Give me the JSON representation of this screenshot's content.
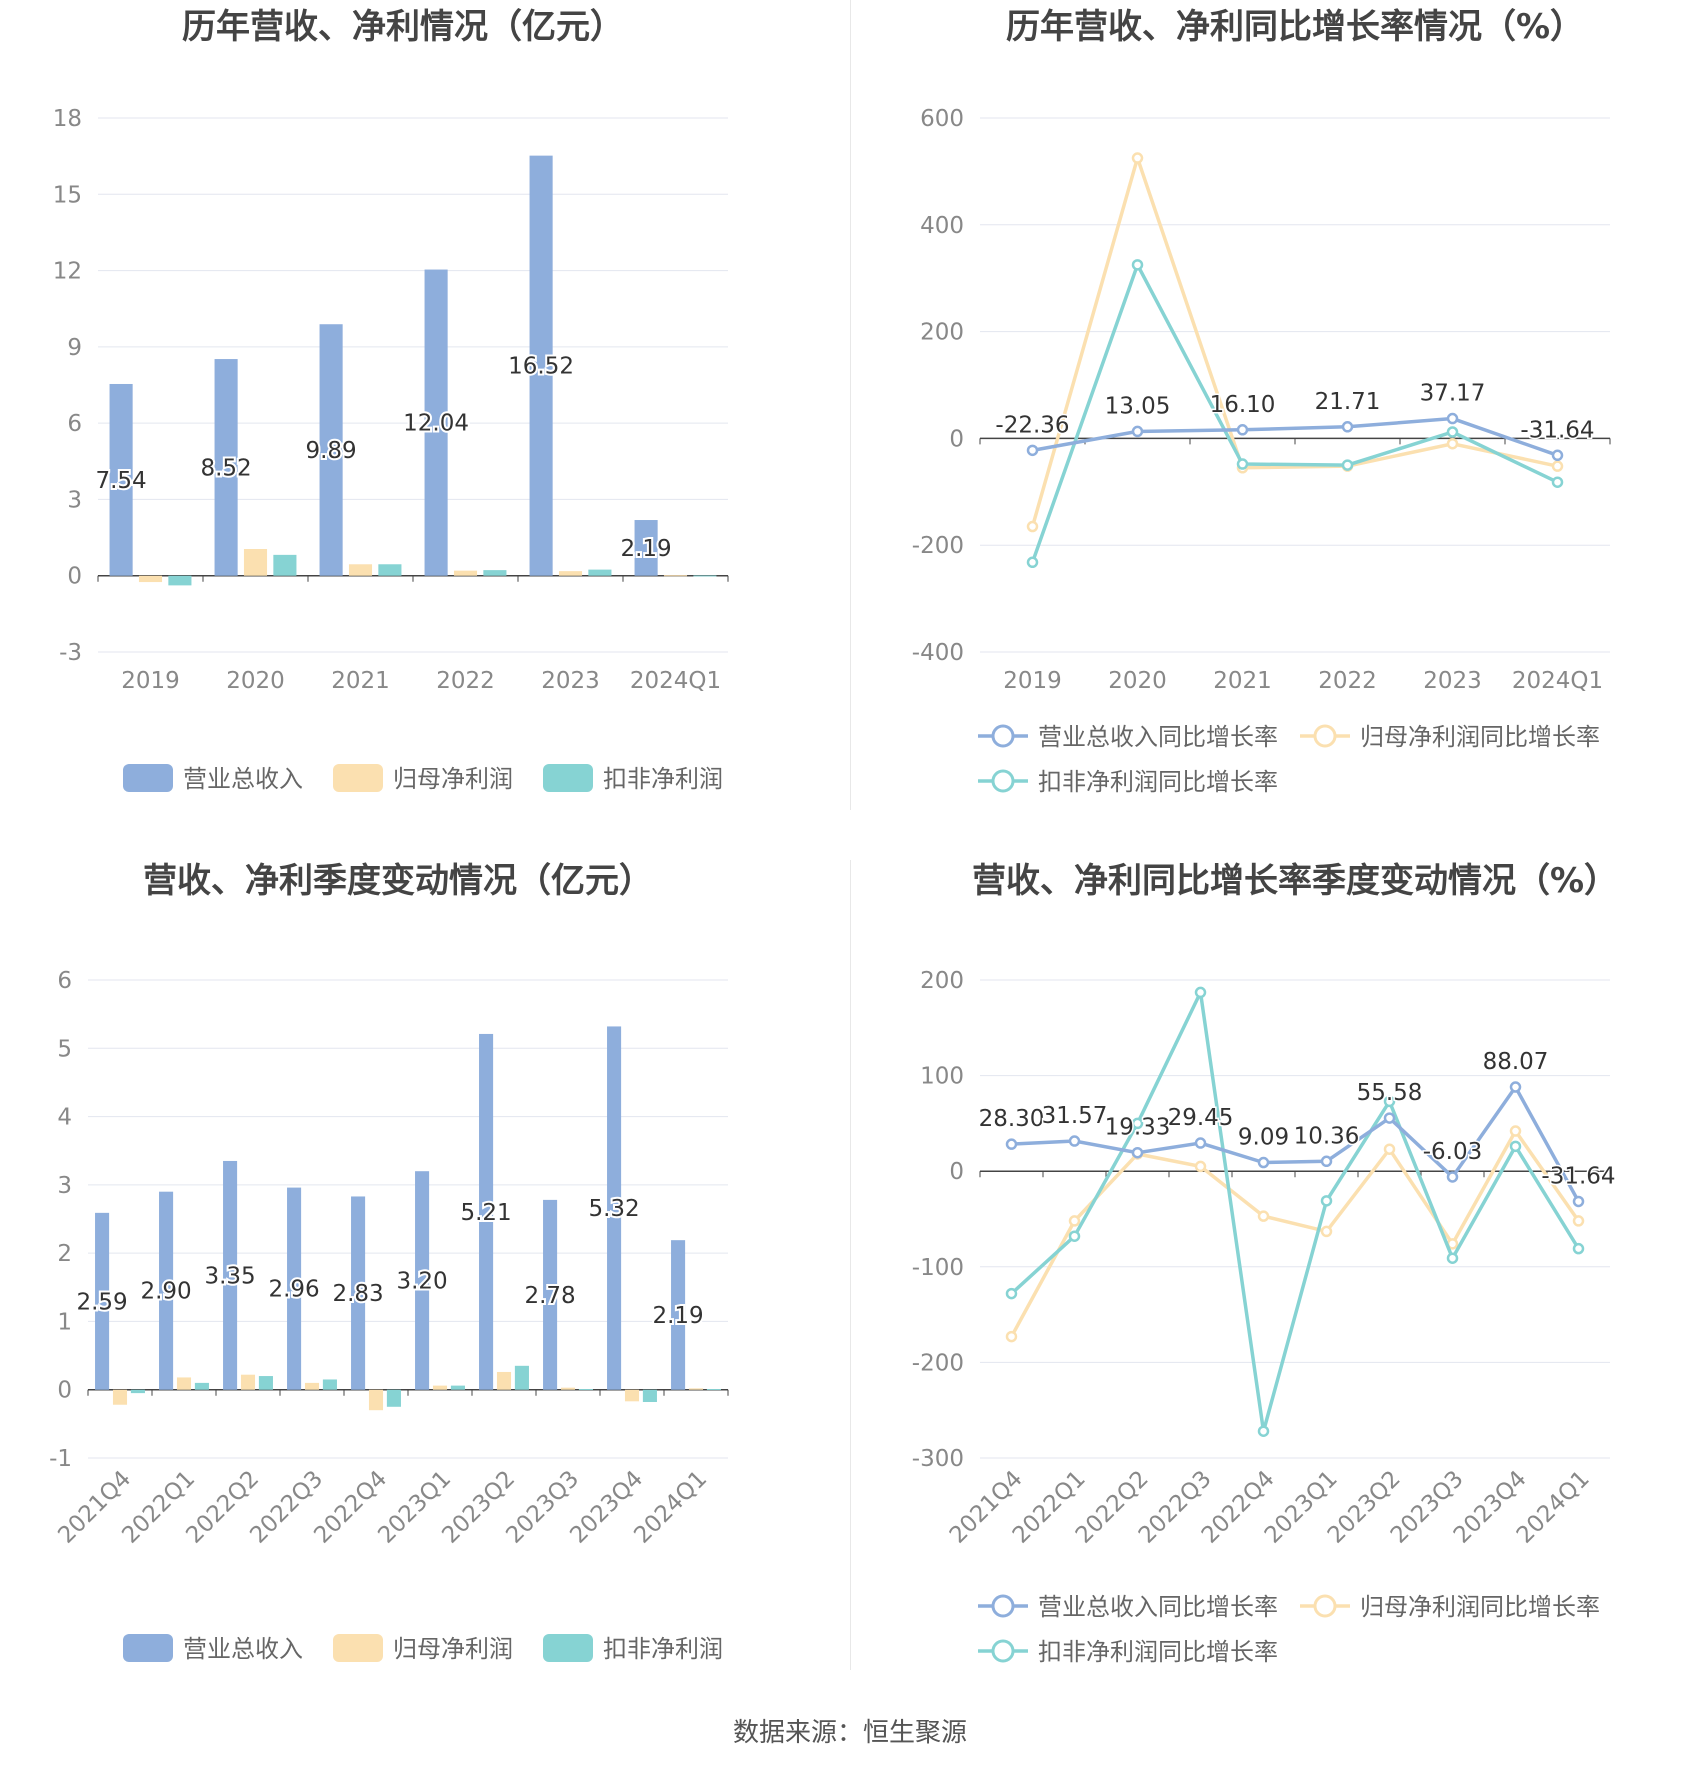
{
  "source_label": "数据来源：恒生聚源",
  "colors": {
    "revenue": "#8eaedc",
    "net_profit": "#fbe0b0",
    "deducted_profit": "#86d3d3",
    "grid": "#e3e6ef",
    "text": "#333333"
  },
  "chart_data": [
    {
      "type": "bar",
      "title": "历年营收、净利情况（亿元）",
      "categories": [
        "2019",
        "2020",
        "2021",
        "2022",
        "2023",
        "2024Q1"
      ],
      "series": [
        {
          "name": "营业总收入",
          "values": [
            7.54,
            8.52,
            9.89,
            12.04,
            16.52,
            2.19
          ]
        },
        {
          "name": "归母净利润",
          "values": [
            -0.25,
            1.05,
            0.45,
            0.2,
            0.18,
            0.02
          ]
        },
        {
          "name": "扣非净利润",
          "values": [
            -0.38,
            0.82,
            0.45,
            0.22,
            0.24,
            0.01
          ]
        }
      ],
      "data_labels": [
        "7.54",
        "8.52",
        "9.89",
        "12.04",
        "16.52",
        "2.19"
      ],
      "ylim": [
        -3,
        18
      ],
      "yticks": [
        "-3",
        "0",
        "3",
        "6",
        "9",
        "12",
        "15",
        "18"
      ],
      "grid": true,
      "legend": "bottom"
    },
    {
      "type": "line",
      "title": "历年营收、净利同比增长率情况（%）",
      "categories": [
        "2019",
        "2020",
        "2021",
        "2022",
        "2023",
        "2024Q1"
      ],
      "series": [
        {
          "name": "营业总收入同比增长率",
          "values": [
            -22.36,
            13.05,
            16.1,
            21.71,
            37.17,
            -31.64
          ]
        },
        {
          "name": "归母净利润同比增长率",
          "values": [
            -165,
            525,
            -55,
            -52,
            -10,
            -52
          ]
        },
        {
          "name": "扣非净利润同比增长率",
          "values": [
            -232,
            325,
            -48,
            -50,
            12,
            -82
          ]
        }
      ],
      "data_labels": [
        "-22.36",
        "13.05",
        "16.10",
        "21.71",
        "37.17",
        "-31.64"
      ],
      "ylim": [
        -400,
        600
      ],
      "yticks": [
        "-400",
        "-200",
        "0",
        "200",
        "400",
        "600"
      ],
      "grid": true,
      "legend": "bottom"
    },
    {
      "type": "bar",
      "title": "营收、净利季度变动情况（亿元）",
      "categories": [
        "2021Q4",
        "2022Q1",
        "2022Q2",
        "2022Q3",
        "2022Q4",
        "2023Q1",
        "2023Q2",
        "2023Q3",
        "2023Q4",
        "2024Q1"
      ],
      "series": [
        {
          "name": "营业总收入",
          "values": [
            2.59,
            2.9,
            3.35,
            2.96,
            2.83,
            3.2,
            5.21,
            2.78,
            5.32,
            2.19
          ]
        },
        {
          "name": "归母净利润",
          "values": [
            -0.22,
            0.18,
            0.22,
            0.1,
            -0.3,
            0.06,
            0.26,
            0.03,
            -0.17,
            0.02
          ]
        },
        {
          "name": "扣非净利润",
          "values": [
            -0.05,
            0.1,
            0.2,
            0.15,
            -0.25,
            0.06,
            0.35,
            0.01,
            -0.18,
            0.01
          ]
        }
      ],
      "data_labels": [
        "2.59",
        "2.90",
        "3.35",
        "2.96",
        "2.83",
        "3.20",
        "5.21",
        "2.78",
        "5.32",
        "2.19"
      ],
      "ylim": [
        -1,
        6
      ],
      "yticks": [
        "-1",
        "0",
        "1",
        "2",
        "3",
        "4",
        "5",
        "6"
      ],
      "grid": true,
      "legend": "bottom"
    },
    {
      "type": "line",
      "title": "营收、净利同比增长率季度变动情况（%）",
      "categories": [
        "2021Q4",
        "2022Q1",
        "2022Q2",
        "2022Q3",
        "2022Q4",
        "2023Q1",
        "2023Q2",
        "2023Q3",
        "2023Q4",
        "2024Q1"
      ],
      "series": [
        {
          "name": "营业总收入同比增长率",
          "values": [
            28.3,
            31.57,
            19.33,
            29.45,
            9.09,
            10.36,
            55.58,
            -6.03,
            88.07,
            -31.64
          ]
        },
        {
          "name": "归母净利润同比增长率",
          "values": [
            -173,
            -52,
            18,
            5,
            -47,
            -63,
            23,
            -76,
            42,
            -52
          ]
        },
        {
          "name": "扣非净利润同比增长率",
          "values": [
            -128,
            -68,
            50,
            187,
            -272,
            -31,
            73,
            -91,
            26,
            -81
          ]
        }
      ],
      "data_labels": [
        "28.30",
        "31.57",
        "19.33",
        "29.45",
        "9.09",
        "10.36",
        "55.58",
        "-6.03",
        "88.07",
        "-31.64"
      ],
      "ylim": [
        -300,
        200
      ],
      "yticks": [
        "-300",
        "-200",
        "-100",
        "0",
        "100",
        "200"
      ],
      "grid": true,
      "legend": "bottom"
    }
  ]
}
